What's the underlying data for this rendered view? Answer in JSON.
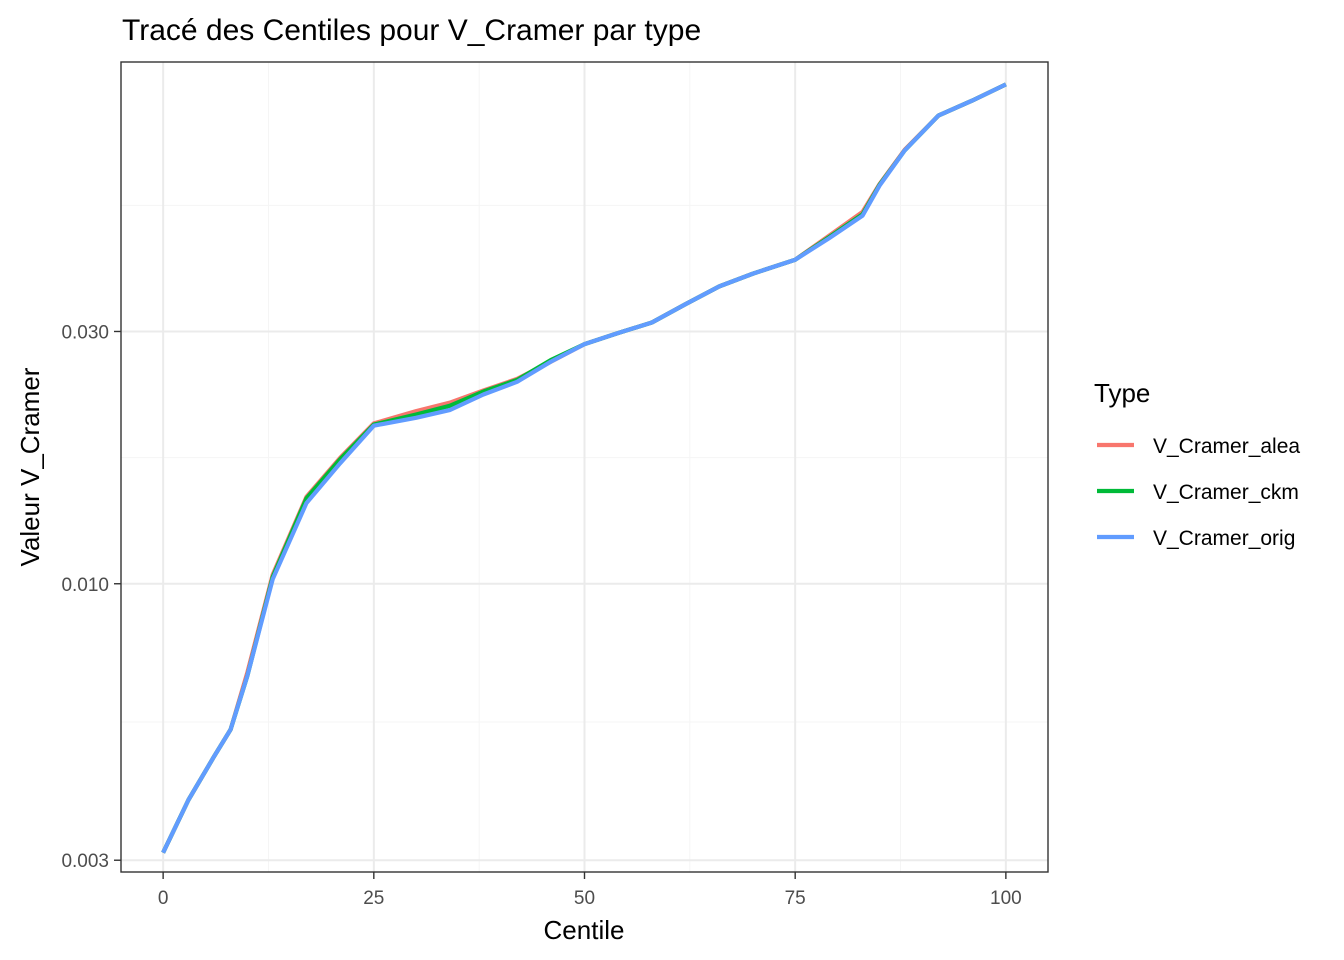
{
  "chart_data": {
    "type": "line",
    "title": "Tracé des Centiles pour V_Cramer par type",
    "xlabel": "Centile",
    "ylabel": "Valeur V_Cramer",
    "xlim": [
      -5,
      105
    ],
    "ylim": [
      0.00285,
      0.097
    ],
    "yscale": "log10",
    "grid": true,
    "x_ticks": [
      0,
      25,
      50,
      75,
      100
    ],
    "x_tick_labels": [
      "0",
      "25",
      "50",
      "75",
      "100"
    ],
    "y_ticks": [
      0.003,
      0.01,
      0.03
    ],
    "y_tick_labels": [
      "0.003",
      "0.010",
      "0.030"
    ],
    "legend": {
      "title": "Type",
      "position": "right"
    },
    "colors": {
      "V_Cramer_alea": "#F8766D",
      "V_Cramer_ckm": "#00BA38",
      "V_Cramer_orig": "#619CFF"
    },
    "x": [
      0,
      3,
      6,
      8,
      10,
      13,
      17,
      21,
      25,
      30,
      34,
      38,
      42,
      46,
      50,
      54,
      58,
      62,
      66,
      70,
      75,
      79,
      83,
      85,
      88,
      92,
      96,
      100
    ],
    "series": [
      {
        "name": "V_Cramer_alea",
        "values": [
          0.0031,
          0.0039,
          0.0047,
          0.0053,
          0.0068,
          0.0104,
          0.0146,
          0.0173,
          0.0201,
          0.0212,
          0.022,
          0.0232,
          0.0244,
          0.0263,
          0.0284,
          0.0298,
          0.0312,
          0.0338,
          0.0365,
          0.0386,
          0.041,
          0.0455,
          0.0505,
          0.057,
          0.0662,
          0.0768,
          0.082,
          0.088
        ]
      },
      {
        "name": "V_Cramer_ckm",
        "values": [
          0.0031,
          0.0039,
          0.0047,
          0.0053,
          0.0067,
          0.0103,
          0.0145,
          0.0172,
          0.02,
          0.0209,
          0.0217,
          0.0231,
          0.0243,
          0.0265,
          0.0284,
          0.0298,
          0.0312,
          0.0338,
          0.0365,
          0.0386,
          0.041,
          0.0452,
          0.05,
          0.0568,
          0.066,
          0.0768,
          0.082,
          0.088
        ]
      },
      {
        "name": "V_Cramer_orig",
        "values": [
          0.0031,
          0.0039,
          0.0047,
          0.0053,
          0.0067,
          0.0102,
          0.0142,
          0.0169,
          0.0199,
          0.0206,
          0.0213,
          0.0228,
          0.0241,
          0.0263,
          0.0284,
          0.0298,
          0.0312,
          0.0338,
          0.0365,
          0.0386,
          0.041,
          0.045,
          0.0497,
          0.0566,
          0.066,
          0.0768,
          0.082,
          0.088
        ]
      }
    ]
  }
}
